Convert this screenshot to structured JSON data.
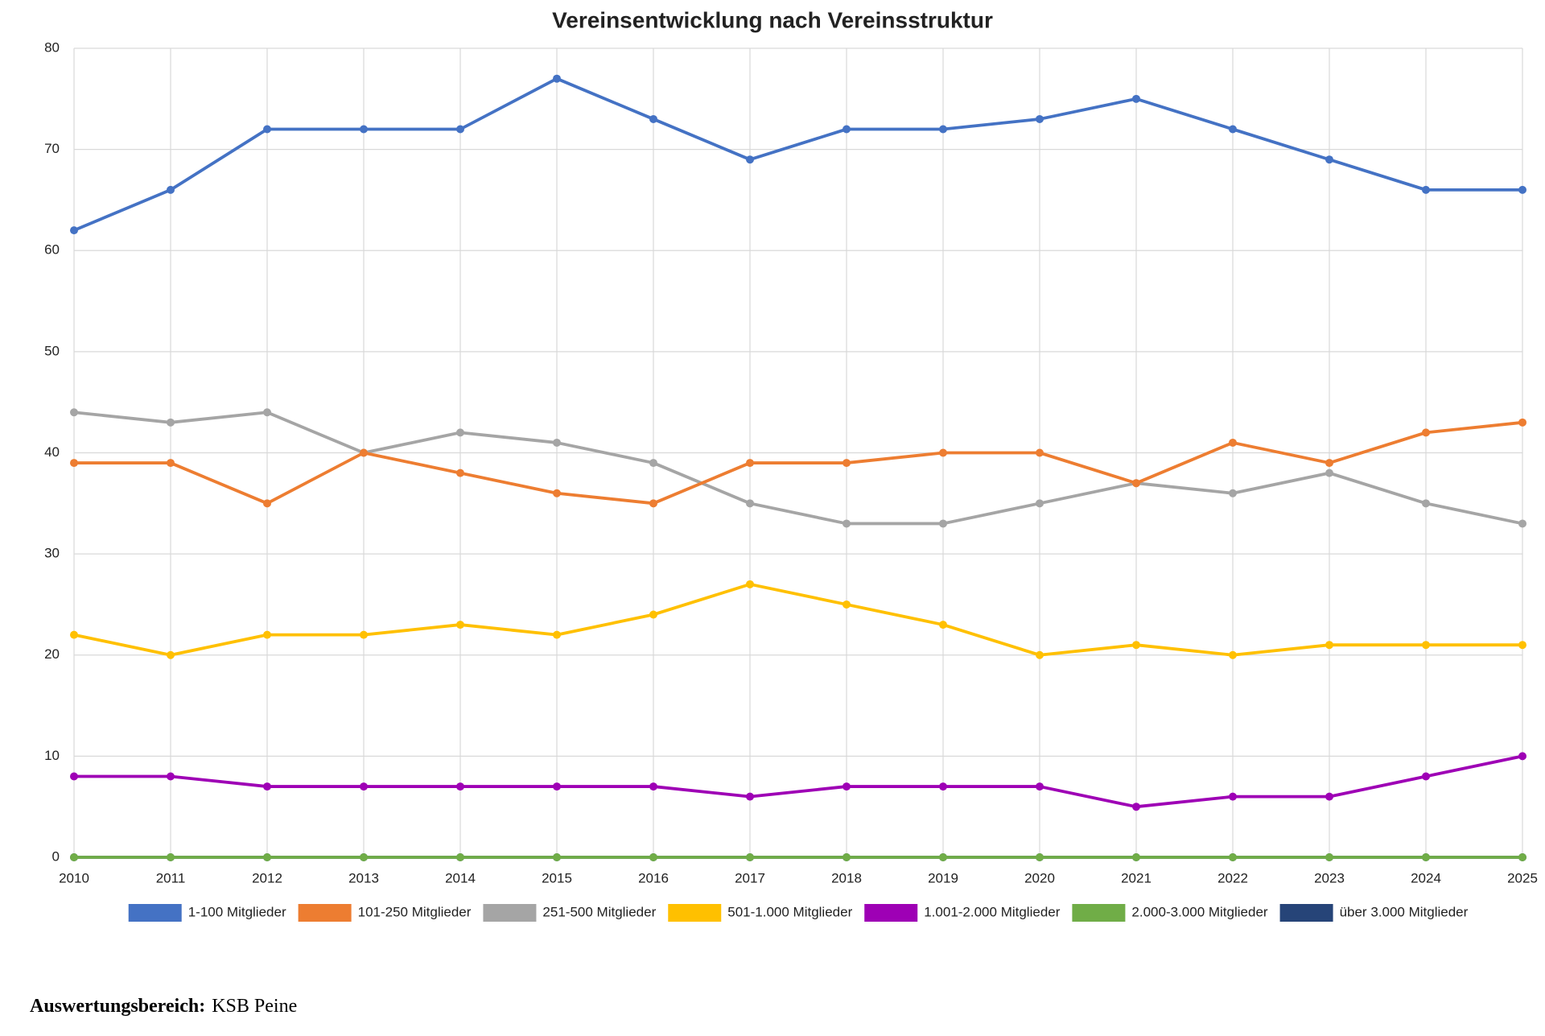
{
  "chart_data": {
    "type": "line",
    "title": "Vereinsentwicklung nach Vereinsstruktur",
    "categories": [
      "2010",
      "2011",
      "2012",
      "2013",
      "2014",
      "2015",
      "2016",
      "2017",
      "2018",
      "2019",
      "2020",
      "2021",
      "2022",
      "2023",
      "2024",
      "2025"
    ],
    "series": [
      {
        "name": "1-100 Mitglieder",
        "color": "#4472c4",
        "values": [
          62,
          66,
          72,
          72,
          72,
          77,
          73,
          69,
          72,
          72,
          73,
          75,
          72,
          69,
          66,
          66
        ]
      },
      {
        "name": "101-250 Mitglieder",
        "color": "#ed7d31",
        "values": [
          39,
          39,
          35,
          40,
          38,
          36,
          35,
          39,
          39,
          40,
          40,
          37,
          41,
          39,
          42,
          43
        ]
      },
      {
        "name": "251-500 Mitglieder",
        "color": "#a5a5a5",
        "values": [
          44,
          43,
          44,
          40,
          42,
          41,
          39,
          35,
          33,
          33,
          35,
          37,
          36,
          38,
          35,
          33
        ]
      },
      {
        "name": "501-1.000 Mitglieder",
        "color": "#ffc000",
        "values": [
          22,
          20,
          22,
          22,
          23,
          22,
          24,
          27,
          25,
          23,
          20,
          21,
          20,
          21,
          21,
          21
        ]
      },
      {
        "name": "1.001-2.000 Mitglieder",
        "color": "#9e00b5",
        "values": [
          8,
          8,
          7,
          7,
          7,
          7,
          7,
          6,
          7,
          7,
          7,
          5,
          6,
          6,
          8,
          10
        ]
      },
      {
        "name": "2.000-3.000 Mitglieder",
        "color": "#70ad47",
        "values": [
          0,
          0,
          0,
          0,
          0,
          0,
          0,
          0,
          0,
          0,
          0,
          0,
          0,
          0,
          0,
          0
        ]
      },
      {
        "name": "über 3.000 Mitglieder",
        "color": "#264478",
        "values": [
          0,
          0,
          0,
          0,
          0,
          0,
          0,
          0,
          0,
          0,
          0,
          0,
          0,
          0,
          0,
          0
        ]
      }
    ],
    "ylim": [
      0,
      80
    ],
    "yticks": [
      0,
      10,
      20,
      30,
      40,
      50,
      60,
      70,
      80
    ],
    "grid": true,
    "legend": "bottom"
  },
  "footer": {
    "label": "Auswertungsbereich:",
    "value": "KSB Peine"
  }
}
